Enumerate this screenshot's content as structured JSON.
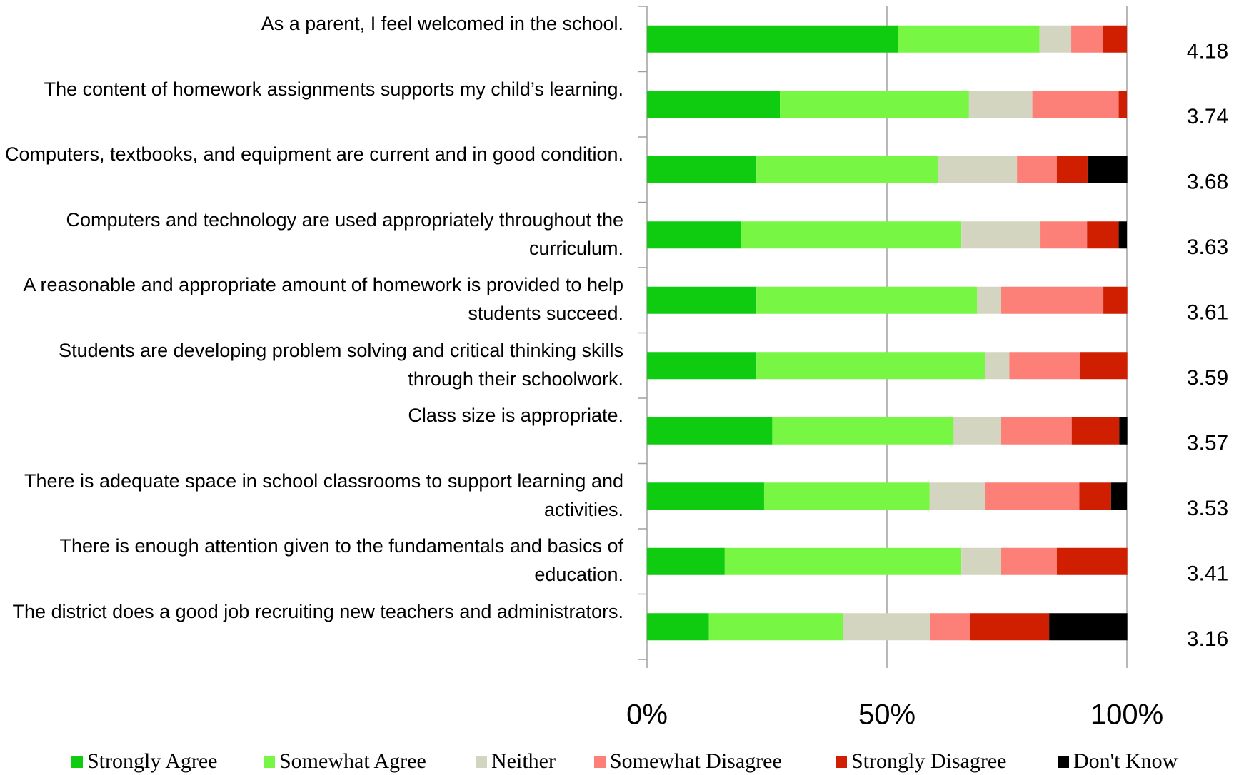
{
  "chart_data": {
    "type": "stacked-bar-horizontal",
    "categories": [
      "As a parent, I feel welcomed in the school.",
      "The content of homework assignments supports my child’s learning.",
      "Computers, textbooks, and equipment are current and in good condition.",
      "Computers and technology are used appropriately throughout the curriculum.",
      "A reasonable and appropriate amount of homework is provided to help students succeed.",
      "Students are developing problem solving and critical thinking skills through their schoolwork.",
      "Class size is appropriate.",
      "There is adequate space in school classrooms to support learning and activities.",
      "There is enough attention given to the fundamentals and basics of education.",
      "The district does a good job recruiting new teachers and administrators."
    ],
    "series": [
      {
        "name": "Strongly Agree",
        "color": "#10cc10",
        "values": [
          52.3,
          27.7,
          22.8,
          19.5,
          22.8,
          22.8,
          26.1,
          24.4,
          16.2,
          12.9
        ]
      },
      {
        "name": "Somewhat Agree",
        "color": "#77f744",
        "values": [
          29.5,
          39.4,
          37.8,
          46.0,
          46.0,
          47.7,
          37.8,
          34.5,
          49.3,
          27.9
        ]
      },
      {
        "name": "Neither",
        "color": "#d4d5c1",
        "values": [
          6.6,
          13.2,
          16.5,
          16.5,
          5.0,
          5.0,
          9.9,
          11.6,
          8.3,
          18.2
        ]
      },
      {
        "name": "Somewhat Disagree",
        "color": "#fc8078",
        "values": [
          6.6,
          18.0,
          8.3,
          9.7,
          21.3,
          14.7,
          14.7,
          19.6,
          11.6,
          8.3
        ]
      },
      {
        "name": "Strongly Disagree",
        "color": "#d01e00",
        "values": [
          5.0,
          1.7,
          6.4,
          6.6,
          5.0,
          9.9,
          9.9,
          6.6,
          14.7,
          16.5
        ]
      },
      {
        "name": "Don't Know",
        "color": "#000000",
        "values": [
          0,
          0,
          8.3,
          1.7,
          0,
          0,
          1.7,
          3.3,
          0,
          16.3
        ]
      }
    ],
    "means": [
      4.18,
      3.74,
      3.68,
      3.63,
      3.61,
      3.59,
      3.57,
      3.53,
      3.41,
      3.16
    ],
    "xlim": [
      0,
      100
    ],
    "xticks": [
      {
        "value": 0,
        "label": "0%"
      },
      {
        "value": 50,
        "label": "50%"
      },
      {
        "value": 100,
        "label": "100%"
      }
    ],
    "grid": true
  }
}
